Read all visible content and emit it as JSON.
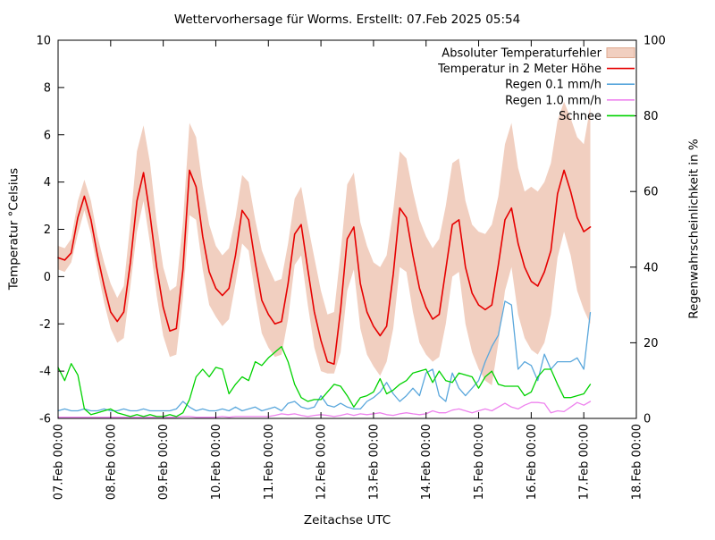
{
  "chart_data": {
    "type": "line",
    "title": "Wettervorhersage für Worms. Erstellt: 07.Feb 2025 05:54",
    "x_label": "Zeitachse UTC",
    "ylabel_left": "Temperatur °Celsius",
    "ylabel_right": "Regenwahrscheinlichkeit in %",
    "x_tick_labels": [
      "07.Feb 00:00",
      "08.Feb 00:00",
      "09.Feb 00:00",
      "10.Feb 00:00",
      "11.Feb 00:00",
      "12.Feb 00:00",
      "13.Feb 00:00",
      "14.Feb 00:00",
      "15.Feb 00:00",
      "16.Feb 00:00",
      "17.Feb 00:00",
      "18.Feb 00:00"
    ],
    "x_range_days": 11,
    "sample_step_hours": 3,
    "y_left": {
      "min": -6,
      "max": 10,
      "ticks": [
        -6,
        -4,
        -2,
        0,
        2,
        4,
        6,
        8,
        10
      ]
    },
    "y_right": {
      "min": 0,
      "max": 100,
      "ticks": [
        0,
        20,
        40,
        60,
        80,
        100
      ]
    },
    "legend_position": "top-right-inside",
    "grid": false,
    "frame_color": "#000000",
    "background_color": "#ffffff",
    "series": [
      {
        "name": "Absoluter Temperaturfehler",
        "type": "band",
        "axis": "left",
        "color": "#f1cfc0",
        "swatch_border": "#dfa98f",
        "upper": [
          1.3,
          1.2,
          1.6,
          3.2,
          4.1,
          3.2,
          1.7,
          0.6,
          -0.3,
          -0.9,
          -0.4,
          2.3,
          5.3,
          6.4,
          4.8,
          2.3,
          0.4,
          -0.6,
          -0.4,
          2.3,
          6.5,
          5.9,
          3.8,
          2.2,
          1.3,
          0.9,
          1.2,
          2.5,
          4.3,
          4.0,
          2.4,
          1.1,
          0.4,
          -0.2,
          -0.1,
          1.4,
          3.3,
          3.8,
          2.2,
          0.8,
          -0.6,
          -1.6,
          -1.5,
          1.0,
          3.9,
          4.4,
          2.3,
          1.3,
          0.6,
          0.4,
          0.9,
          2.8,
          5.3,
          5.0,
          3.6,
          2.4,
          1.7,
          1.2,
          1.6,
          3.0,
          4.8,
          5.0,
          3.2,
          2.2,
          1.9,
          1.8,
          2.2,
          3.4,
          5.6,
          6.5,
          4.6,
          3.6,
          3.8,
          3.6,
          4.0,
          4.8,
          6.6,
          7.4,
          6.7,
          5.9,
          5.6,
          7.2
        ],
        "lower": [
          0.3,
          0.2,
          0.6,
          1.8,
          2.8,
          1.8,
          0.3,
          -1.1,
          -2.2,
          -2.8,
          -2.6,
          -0.4,
          1.9,
          3.2,
          1.4,
          -0.8,
          -2.5,
          -3.4,
          -3.3,
          -0.9,
          2.6,
          2.4,
          0.3,
          -1.2,
          -1.7,
          -2.1,
          -1.8,
          -0.3,
          1.4,
          1.1,
          -0.8,
          -2.4,
          -3.0,
          -3.4,
          -3.3,
          -1.8,
          0.5,
          0.9,
          -1.2,
          -3.0,
          -4.0,
          -4.1,
          -4.1,
          -3.2,
          -0.6,
          0.3,
          -2.2,
          -3.3,
          -3.8,
          -4.2,
          -3.6,
          -2.2,
          0.4,
          0.2,
          -1.5,
          -2.8,
          -3.3,
          -3.6,
          -3.4,
          -2.0,
          0.0,
          0.2,
          -2.0,
          -3.2,
          -3.9,
          -4.4,
          -4.6,
          -2.8,
          -0.6,
          0.4,
          -1.6,
          -2.6,
          -3.1,
          -3.3,
          -2.8,
          -1.6,
          0.8,
          1.9,
          0.9,
          -0.6,
          -1.4,
          -2.0
        ]
      },
      {
        "name": "Temperatur in 2 Meter Höhe",
        "type": "line",
        "axis": "left",
        "color": "#e60000",
        "values": [
          0.8,
          0.7,
          1.0,
          2.5,
          3.4,
          2.4,
          0.9,
          -0.4,
          -1.5,
          -1.9,
          -1.5,
          0.6,
          3.2,
          4.4,
          2.6,
          0.4,
          -1.3,
          -2.3,
          -2.2,
          0.3,
          4.5,
          3.8,
          1.7,
          0.2,
          -0.5,
          -0.8,
          -0.5,
          0.9,
          2.8,
          2.4,
          0.6,
          -1.0,
          -1.6,
          -2.0,
          -1.9,
          -0.3,
          1.8,
          2.2,
          0.3,
          -1.5,
          -2.7,
          -3.6,
          -3.7,
          -1.4,
          1.6,
          2.1,
          -0.3,
          -1.5,
          -2.1,
          -2.5,
          -2.1,
          0.1,
          2.9,
          2.5,
          0.9,
          -0.5,
          -1.3,
          -1.8,
          -1.6,
          0.3,
          2.2,
          2.4,
          0.4,
          -0.7,
          -1.2,
          -1.4,
          -1.2,
          0.5,
          2.4,
          2.9,
          1.4,
          0.4,
          -0.2,
          -0.4,
          0.2,
          1.1,
          3.5,
          4.5,
          3.6,
          2.5,
          1.9,
          2.1
        ]
      },
      {
        "name": "Regen 0.1 mm/h",
        "type": "line",
        "axis": "right",
        "color": "#5aa7dc",
        "values": [
          2,
          2.5,
          2,
          2,
          2.5,
          2,
          2,
          2.5,
          2,
          2,
          2.5,
          2,
          2,
          2.5,
          2,
          2,
          2,
          2,
          2.5,
          4.5,
          3,
          2,
          2.5,
          2,
          2,
          2.5,
          2,
          3,
          2,
          2.5,
          3,
          2,
          2.5,
          3,
          2,
          4,
          4.5,
          3,
          2.5,
          3,
          6,
          3.5,
          3,
          4,
          3,
          2.5,
          2.5,
          4.5,
          5.5,
          7,
          9.5,
          6.5,
          4.5,
          6,
          8,
          6,
          12,
          13,
          6,
          4.5,
          12,
          8,
          6,
          8,
          10,
          15,
          19,
          22,
          31,
          30,
          13,
          15,
          14,
          10,
          17,
          13,
          15,
          15,
          15,
          16,
          13,
          28
        ]
      },
      {
        "name": "Regen 1.0 mm/h",
        "type": "line",
        "axis": "right",
        "color": "#ee82ee",
        "values": [
          0.3,
          0.3,
          0.3,
          0.3,
          0.3,
          0.3,
          0.3,
          0.3,
          0.3,
          0.3,
          0.3,
          0.3,
          0.3,
          0.3,
          0.3,
          0.3,
          0.3,
          0.3,
          0.3,
          0.5,
          0.5,
          0.3,
          0.3,
          0.3,
          0.3,
          0.5,
          0.3,
          0.5,
          0.5,
          0.5,
          0.5,
          0.5,
          0.5,
          0.8,
          1.2,
          1.0,
          1.2,
          0.8,
          0.5,
          0.8,
          1.0,
          0.8,
          0.5,
          0.8,
          1.2,
          0.8,
          1.2,
          1.0,
          1.2,
          1.5,
          1.0,
          0.8,
          1.2,
          1.5,
          1.2,
          1.0,
          1.2,
          2.0,
          1.5,
          1.5,
          2.2,
          2.5,
          2.0,
          1.5,
          2.0,
          2.5,
          2.0,
          3.0,
          4.0,
          3.0,
          2.5,
          3.5,
          4.2,
          4.2,
          4.0,
          1.5,
          2.0,
          1.8,
          3.0,
          4.2,
          3.5,
          4.5
        ]
      },
      {
        "name": "Schnee",
        "type": "line",
        "axis": "right",
        "color": "#00d200",
        "values": [
          13.5,
          10,
          14.5,
          11.5,
          2.5,
          1,
          1.5,
          2,
          2.5,
          1.5,
          1,
          0.5,
          1,
          0.5,
          1,
          0.5,
          0.5,
          1,
          0.5,
          1.5,
          5,
          11,
          13,
          11,
          13.5,
          13,
          6.5,
          9,
          11,
          10,
          15,
          14,
          16,
          17.5,
          19,
          15,
          9,
          5.5,
          4.5,
          5,
          5,
          7,
          9,
          8.5,
          6,
          3,
          5.5,
          6,
          7,
          10.5,
          6.5,
          7.5,
          9,
          10,
          12,
          12.5,
          13,
          9.5,
          12.5,
          10,
          9.5,
          12,
          11.5,
          11,
          8,
          11,
          12.5,
          9,
          8.5,
          8.5,
          8.5,
          6,
          7,
          11,
          13,
          13,
          9,
          5.5,
          5.5,
          6,
          6.5,
          9
        ]
      }
    ]
  }
}
